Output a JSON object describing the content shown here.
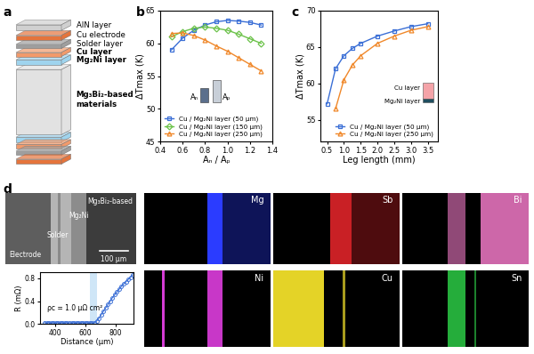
{
  "panel_labels": [
    "a",
    "b",
    "c",
    "d"
  ],
  "schematic": {
    "layers": [
      "AlN layer",
      "Cu electrode",
      "Solder layer",
      "Cu layer",
      "Mg₂Ni layer",
      "Mg₃Bi₂-based\nmaterials"
    ]
  },
  "chart_data": [
    {
      "type": "line",
      "x_label": "Aₙ / Aₚ",
      "y_label": "ΔTmax (K)",
      "xlim": [
        0.4,
        1.4
      ],
      "xticks": [
        0.4,
        0.6,
        0.8,
        1.0,
        1.2,
        1.4
      ],
      "ylim": [
        45,
        65
      ],
      "yticks": [
        45,
        50,
        55,
        60,
        65
      ],
      "legend": "lower left",
      "annotations": [
        "Aₙ",
        "Aₚ"
      ],
      "x": [
        0.5,
        0.6,
        0.7,
        0.8,
        0.9,
        1.0,
        1.1,
        1.2,
        1.3
      ],
      "series": [
        {
          "name": "Cu / Mg₂Ni layer (50 μm)",
          "color": "#3b6fd6",
          "marker": "square",
          "values": [
            59.0,
            60.8,
            62.0,
            62.8,
            63.3,
            63.5,
            63.4,
            63.2,
            62.8
          ]
        },
        {
          "name": "Cu / Mg₂Ni layer (150 μm)",
          "color": "#6cc24a",
          "marker": "diamond",
          "values": [
            61.0,
            61.8,
            62.3,
            62.5,
            62.3,
            62.0,
            61.4,
            60.7,
            60.0
          ]
        },
        {
          "name": "Cu / Mg₂Ni layer (250 μm)",
          "color": "#f0882a",
          "marker": "triangle",
          "values": [
            61.5,
            61.6,
            61.2,
            60.5,
            59.6,
            58.8,
            57.8,
            56.8,
            55.8
          ]
        }
      ]
    },
    {
      "type": "line",
      "x_label": "Leg length (mm)",
      "y_label": "ΔTmax (K)",
      "xlim": [
        0.3,
        3.8
      ],
      "xticks": [
        0.5,
        1.0,
        1.5,
        2.0,
        2.5,
        3.0,
        3.5
      ],
      "ylim": [
        52,
        70
      ],
      "yticks": [
        55,
        60,
        65,
        70
      ],
      "legend": "lower right",
      "annotations": [
        "Cu layer",
        "Mg₂Ni layer"
      ],
      "series": [
        {
          "name": "Cu / Mg₂Ni layer (50 μm)",
          "color": "#3b6fd6",
          "marker": "square",
          "x": [
            0.5,
            0.75,
            1.0,
            1.25,
            1.5,
            2.0,
            2.5,
            3.0,
            3.5
          ],
          "values": [
            57.2,
            62.0,
            63.8,
            64.8,
            65.5,
            66.5,
            67.2,
            67.8,
            68.2
          ]
        },
        {
          "name": "Cu / Mg₂Ni layer (250 μm)",
          "color": "#f0882a",
          "marker": "triangle",
          "x": [
            0.75,
            1.0,
            1.25,
            1.5,
            2.0,
            2.5,
            3.0,
            3.5
          ],
          "values": [
            56.5,
            60.5,
            62.5,
            63.8,
            65.5,
            66.5,
            67.3,
            67.8
          ]
        }
      ]
    },
    {
      "type": "line",
      "x_label": "Distance (μm)",
      "y_label": "R (mΩ)",
      "xlim": [
        300,
        920
      ],
      "xticks": [
        400,
        600,
        800
      ],
      "ylim": [
        0,
        0.9
      ],
      "yticks": [
        {
          "value": 0,
          "label": "0.0"
        },
        0.4,
        0.8
      ],
      "color": "#3b6fd6",
      "marker": "circle",
      "shaded_range": [
        630,
        680
      ],
      "annotations": [
        "ρc = 1.0 μΩ cm²"
      ],
      "x": [
        330,
        345,
        360,
        375,
        390,
        405,
        420,
        435,
        450,
        465,
        480,
        495,
        510,
        525,
        540,
        555,
        570,
        585,
        600,
        615,
        630,
        645,
        660,
        675,
        690,
        705,
        720,
        735,
        750,
        765,
        780,
        795,
        810,
        825,
        840,
        855,
        870,
        885,
        900,
        915
      ],
      "values": [
        0.02,
        0.02,
        0.02,
        0.02,
        0.02,
        0.02,
        0.02,
        0.02,
        0.02,
        0.02,
        0.02,
        0.02,
        0.02,
        0.02,
        0.02,
        0.02,
        0.02,
        0.02,
        0.02,
        0.02,
        0.02,
        0.02,
        0.02,
        0.05,
        0.1,
        0.16,
        0.22,
        0.28,
        0.34,
        0.4,
        0.46,
        0.51,
        0.56,
        0.61,
        0.66,
        0.7,
        0.74,
        0.78,
        0.82,
        0.86
      ]
    }
  ],
  "sem_image": {
    "labels": [
      "Mg₃Bi₂-based",
      "Mg₂Ni",
      "Solder",
      "Electrode"
    ],
    "scale_bar": "100 μm"
  },
  "eds_maps": [
    {
      "element": "Mg",
      "color": "#2b3cff"
    },
    {
      "element": "Sb",
      "color": "#e0242a"
    },
    {
      "element": "Bi",
      "color": "#f27ac8"
    },
    {
      "element": "Ni",
      "color": "#d43bd4"
    },
    {
      "element": "Cu",
      "color": "#f2e02a"
    },
    {
      "element": "Sn",
      "color": "#2fd94a"
    }
  ]
}
